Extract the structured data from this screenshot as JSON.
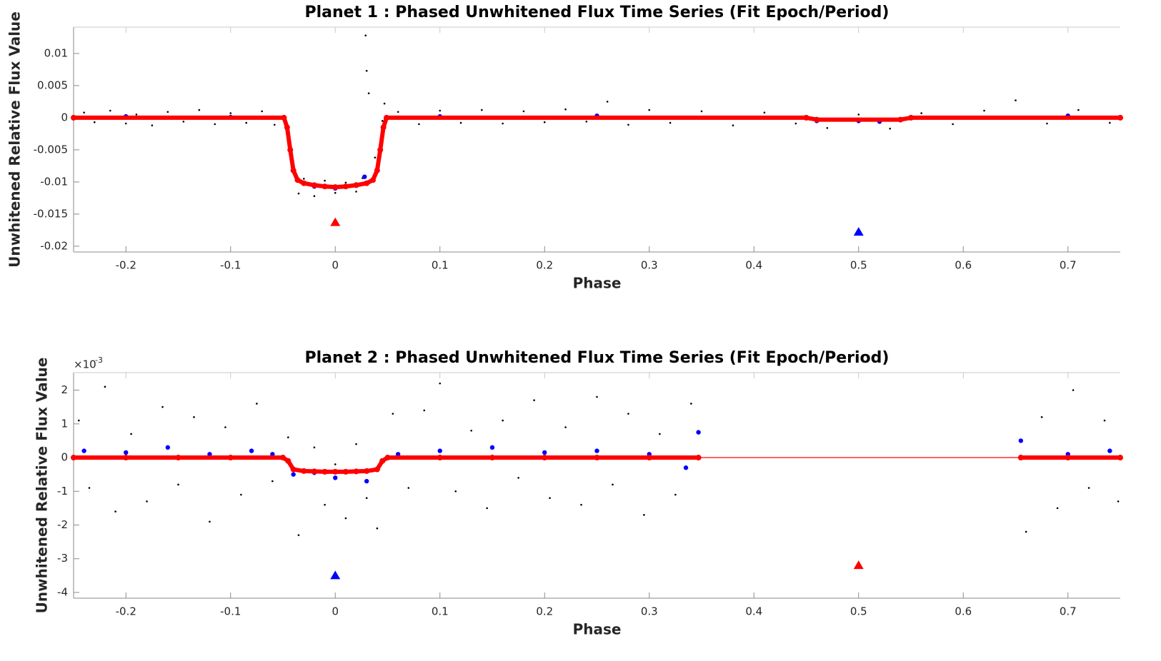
{
  "chart_data": [
    {
      "type": "scatter",
      "title": "Planet 1 : Phased Unwhitened Flux Time Series (Fit Epoch/Period)",
      "xlabel": "Phase",
      "ylabel": "Unwhitened Relative Flux Value",
      "xlim": [
        -0.25,
        0.75
      ],
      "ylim": [
        -0.0209,
        0.0141
      ],
      "xticks": [
        -0.2,
        -0.1,
        0,
        0.1,
        0.2,
        0.3,
        0.4,
        0.5,
        0.6,
        0.7
      ],
      "yticks": [
        -0.02,
        -0.015,
        -0.01,
        -0.005,
        0,
        0.005,
        0.01
      ],
      "series": [
        {
          "color": "#000000",
          "style": "dot",
          "x": [
            -0.24,
            -0.23,
            -0.215,
            -0.2,
            -0.19,
            -0.175,
            -0.16,
            -0.145,
            -0.13,
            -0.115,
            -0.1,
            -0.085,
            -0.07,
            -0.058,
            -0.046,
            -0.04,
            -0.035,
            -0.03,
            -0.02,
            -0.01,
            0,
            0.01,
            0.02,
            0.026,
            0.029,
            0.03,
            0.032,
            0.038,
            0.045,
            0.047,
            0.06,
            0.08,
            0.1,
            0.12,
            0.14,
            0.16,
            0.18,
            0.2,
            0.22,
            0.24,
            0.26,
            0.28,
            0.3,
            0.32,
            0.35,
            0.38,
            0.41,
            0.44,
            0.47,
            0.5,
            0.53,
            0.56,
            0.59,
            0.62,
            0.65,
            0.68,
            0.71,
            0.74
          ],
          "values": [
            0.0008,
            -0.0007,
            0.0011,
            -0.0009,
            0.0005,
            -0.0012,
            0.0009,
            -0.0006,
            0.0012,
            -0.001,
            0.0007,
            -0.0008,
            0.001,
            -0.0011,
            -0.0015,
            -0.0085,
            -0.0118,
            -0.0095,
            -0.0122,
            -0.0098,
            -0.0117,
            -0.0101,
            -0.0115,
            -0.0094,
            0.0128,
            0.0073,
            0.0038,
            -0.0062,
            -0.0005,
            0.0022,
            0.0009,
            -0.001,
            0.0011,
            -0.0008,
            0.0012,
            -0.0009,
            0.001,
            -0.0007,
            0.0013,
            -0.0006,
            0.0025,
            -0.0011,
            0.0012,
            -0.0008,
            0.001,
            -0.0012,
            0.0008,
            -0.0009,
            -0.0016,
            0.0005,
            -0.0017,
            0.0007,
            -0.001,
            0.0011,
            0.0027,
            -0.0009,
            0.0012,
            -0.0008
          ]
        },
        {
          "color": "#0000ff",
          "style": "bigdot",
          "x": [
            -0.2,
            -0.1,
            -0.04,
            -0.02,
            0,
            0.02,
            0.028,
            0.1,
            0.25,
            0.46,
            0.5,
            0.52,
            0.7
          ],
          "values": [
            0.0002,
            0.0001,
            -0.0083,
            -0.0107,
            -0.011,
            -0.0104,
            -0.0092,
            0.0002,
            0.0003,
            -0.0005,
            -0.0005,
            -0.0006,
            0.0003
          ]
        },
        {
          "color": "#ff0000",
          "style": "thick",
          "x": [
            -0.25,
            -0.049,
            -0.046,
            -0.043,
            -0.04,
            -0.036,
            -0.03,
            -0.02,
            -0.01,
            0,
            0.01,
            0.02,
            0.03,
            0.036,
            0.04,
            0.043,
            0.046,
            0.049,
            0.45,
            0.46,
            0.54,
            0.55,
            0.75
          ],
          "values": [
            0,
            0,
            -0.0015,
            -0.005,
            -0.0082,
            -0.0097,
            -0.0102,
            -0.0105,
            -0.0107,
            -0.0108,
            -0.0107,
            -0.0105,
            -0.0102,
            -0.0097,
            -0.0082,
            -0.005,
            -0.0015,
            0,
            0,
            -0.0003,
            -0.0003,
            0,
            0
          ]
        },
        {
          "color": "#ff0000",
          "style": "triangle",
          "x": [
            0
          ],
          "values": [
            -0.0163
          ]
        },
        {
          "color": "#0000ff",
          "style": "triangle",
          "x": [
            0.5
          ],
          "values": [
            -0.0178
          ]
        }
      ]
    },
    {
      "type": "scatter",
      "title": "Planet 2 : Phased Unwhitened Flux Time Series (Fit Epoch/Period)",
      "xlabel": "Phase",
      "ylabel": "Unwhitened Relative Flux Value",
      "y_exponent_base": "×10",
      "y_exponent": "-3",
      "xlim": [
        -0.25,
        0.75
      ],
      "ylim": [
        -4.17,
        2.52
      ],
      "xticks": [
        -0.2,
        -0.1,
        0,
        0.1,
        0.2,
        0.3,
        0.4,
        0.5,
        0.6,
        0.7
      ],
      "yticks": [
        -4,
        -3,
        -2,
        -1,
        0,
        1,
        2
      ],
      "series": [
        {
          "color": "#000000",
          "style": "dot",
          "x": [
            -0.245,
            -0.235,
            -0.22,
            -0.21,
            -0.195,
            -0.18,
            -0.165,
            -0.15,
            -0.135,
            -0.12,
            -0.105,
            -0.09,
            -0.075,
            -0.06,
            -0.045,
            -0.035,
            -0.02,
            -0.01,
            0,
            0.01,
            0.02,
            0.03,
            0.04,
            0.055,
            0.07,
            0.085,
            0.1,
            0.115,
            0.13,
            0.145,
            0.16,
            0.175,
            0.19,
            0.205,
            0.22,
            0.235,
            0.25,
            0.265,
            0.28,
            0.295,
            0.31,
            0.325,
            0.34,
            0.66,
            0.675,
            0.69,
            0.705,
            0.72,
            0.735,
            0.748
          ],
          "values": [
            1.1,
            -0.9,
            2.1,
            -1.6,
            0.7,
            -1.3,
            1.5,
            -0.8,
            1.2,
            -1.9,
            0.9,
            -1.1,
            1.6,
            -0.7,
            0.6,
            -2.3,
            0.3,
            -1.4,
            -0.2,
            -1.8,
            0.4,
            -1.2,
            -2.1,
            1.3,
            -0.9,
            1.4,
            2.2,
            -1.0,
            0.8,
            -1.5,
            1.1,
            -0.6,
            1.7,
            -1.2,
            0.9,
            -1.4,
            1.8,
            -0.8,
            1.3,
            -1.7,
            0.7,
            -1.1,
            1.6,
            -2.2,
            1.2,
            -1.5,
            2.0,
            -0.9,
            1.1,
            -1.3
          ]
        },
        {
          "color": "#0000ff",
          "style": "bigdot",
          "x": [
            -0.24,
            -0.2,
            -0.16,
            -0.12,
            -0.08,
            -0.06,
            -0.04,
            -0.02,
            0,
            0.02,
            0.03,
            0.06,
            0.1,
            0.15,
            0.2,
            0.25,
            0.3,
            0.335,
            0.347,
            0.655,
            0.7,
            0.74
          ],
          "values": [
            0.2,
            0.15,
            0.3,
            0.1,
            0.2,
            0.1,
            -0.5,
            -0.45,
            -0.6,
            -0.4,
            -0.7,
            0.1,
            0.2,
            0.3,
            0.15,
            0.2,
            0.1,
            -0.3,
            0.75,
            0.5,
            0.1,
            0.2
          ]
        },
        {
          "color": "#ff0000",
          "style": "thin",
          "x": [
            -0.25,
            -0.047,
            -0.04,
            0,
            0.04,
            0.047,
            0.75
          ],
          "values": [
            0,
            0,
            -0.38,
            -0.42,
            -0.38,
            0,
            0
          ]
        },
        {
          "color": "#ff0000",
          "style": "thick",
          "x": [
            -0.25,
            -0.2,
            -0.15,
            -0.1,
            -0.05,
            -0.045,
            -0.04,
            -0.03,
            -0.02,
            -0.01,
            0,
            0.01,
            0.02,
            0.03,
            0.04,
            0.045,
            0.05,
            0.1,
            0.15,
            0.2,
            0.25,
            0.3,
            0.347,
            0.5,
            0.655,
            0.7,
            0.75
          ],
          "values": [
            0,
            0,
            0,
            0,
            0,
            -0.1,
            -0.35,
            -0.4,
            -0.41,
            -0.42,
            -0.42,
            -0.42,
            -0.41,
            -0.4,
            -0.35,
            -0.1,
            0,
            0,
            0,
            0,
            0,
            0,
            0,
            null,
            0,
            0,
            0
          ]
        },
        {
          "color": "#0000ff",
          "style": "triangle",
          "x": [
            0
          ],
          "values": [
            -3.5
          ]
        },
        {
          "color": "#ff0000",
          "style": "triangle",
          "x": [
            0.5
          ],
          "values": [
            -3.2
          ]
        }
      ]
    }
  ]
}
